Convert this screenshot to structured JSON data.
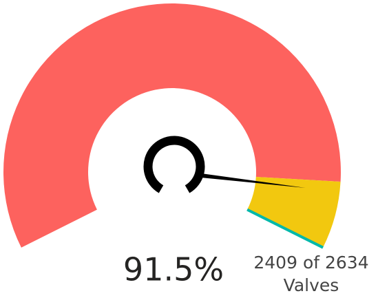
{
  "chart_data": {
    "type": "gauge",
    "value": 91.5,
    "value_label": "91.5%",
    "ylim": [
      0,
      100
    ],
    "bands": [
      {
        "from": 0,
        "to": 90,
        "color": "#fd625e"
      },
      {
        "from": 90,
        "to": 100,
        "color": "#f2c80f"
      }
    ],
    "target_color": "#01b8aa",
    "caption": [
      "2409 of 2634",
      "Valves"
    ]
  }
}
